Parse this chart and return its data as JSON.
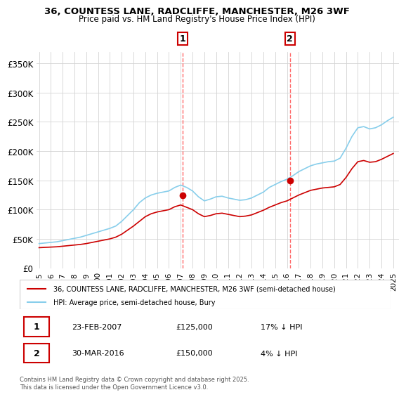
{
  "title_line1": "36, COUNTESS LANE, RADCLIFFE, MANCHESTER, M26 3WF",
  "title_line2": "Price paid vs. HM Land Registry's House Price Index (HPI)",
  "ylabel": "",
  "yticks": [
    0,
    50000,
    100000,
    150000,
    200000,
    250000,
    300000,
    350000
  ],
  "ytick_labels": [
    "£0",
    "£50K",
    "£100K",
    "£150K",
    "£200K",
    "£250K",
    "£300K",
    "£350K"
  ],
  "hpi_color": "#87CEEB",
  "price_color": "#CC0000",
  "vline_color": "#FF6666",
  "annotation_box_color": "#CC0000",
  "legend_label_price": "36, COUNTESS LANE, RADCLIFFE, MANCHESTER, M26 3WF (semi-detached house)",
  "legend_label_hpi": "HPI: Average price, semi-detached house, Bury",
  "transaction1_label": "1",
  "transaction1_date": "23-FEB-2007",
  "transaction1_price": "£125,000",
  "transaction1_hpi": "17% ↓ HPI",
  "transaction2_label": "2",
  "transaction2_date": "30-MAR-2016",
  "transaction2_price": "£150,000",
  "transaction2_hpi": "4% ↓ HPI",
  "footer": "Contains HM Land Registry data © Crown copyright and database right 2025.\nThis data is licensed under the Open Government Licence v3.0.",
  "hpi_data": {
    "years": [
      1995,
      1995.5,
      1996,
      1996.5,
      1997,
      1997.5,
      1998,
      1998.5,
      1999,
      1999.5,
      2000,
      2000.5,
      2001,
      2001.5,
      2002,
      2002.5,
      2003,
      2003.5,
      2004,
      2004.5,
      2005,
      2005.5,
      2006,
      2006.5,
      2007,
      2007.5,
      2008,
      2008.5,
      2009,
      2009.5,
      2010,
      2010.5,
      2011,
      2011.5,
      2012,
      2012.5,
      2013,
      2013.5,
      2014,
      2014.5,
      2015,
      2015.5,
      2016,
      2016.5,
      2017,
      2017.5,
      2018,
      2018.5,
      2019,
      2019.5,
      2020,
      2020.5,
      2021,
      2021.5,
      2022,
      2022.5,
      2023,
      2023.5,
      2024,
      2024.5,
      2025
    ],
    "values": [
      42000,
      43000,
      44000,
      45000,
      47000,
      49000,
      51000,
      53000,
      56000,
      59000,
      62000,
      65000,
      68000,
      72000,
      80000,
      90000,
      100000,
      112000,
      120000,
      125000,
      128000,
      130000,
      132000,
      138000,
      142000,
      138000,
      132000,
      122000,
      115000,
      118000,
      122000,
      123000,
      120000,
      118000,
      116000,
      117000,
      120000,
      125000,
      130000,
      138000,
      143000,
      148000,
      152000,
      158000,
      165000,
      170000,
      175000,
      178000,
      180000,
      182000,
      183000,
      188000,
      205000,
      225000,
      240000,
      242000,
      238000,
      240000,
      245000,
      252000,
      258000
    ]
  },
  "price_data": {
    "years": [
      1995,
      1995.5,
      1996,
      1996.5,
      1997,
      1997.5,
      1998,
      1998.5,
      1999,
      1999.5,
      2000,
      2000.5,
      2001,
      2001.5,
      2002,
      2002.5,
      2003,
      2003.5,
      2004,
      2004.5,
      2005,
      2005.5,
      2006,
      2006.5,
      2007,
      2007.5,
      2008,
      2008.5,
      2009,
      2009.5,
      2010,
      2010.5,
      2011,
      2011.5,
      2012,
      2012.5,
      2013,
      2013.5,
      2014,
      2014.5,
      2015,
      2015.5,
      2016,
      2016.5,
      2017,
      2017.5,
      2018,
      2018.5,
      2019,
      2019.5,
      2020,
      2020.5,
      2021,
      2021.5,
      2022,
      2022.5,
      2023,
      2023.5,
      2024,
      2024.5,
      2025
    ],
    "values": [
      35000,
      35500,
      36000,
      36500,
      37500,
      38500,
      39500,
      40500,
      42000,
      44000,
      46000,
      48000,
      50000,
      53000,
      58000,
      65000,
      72000,
      80000,
      88000,
      93000,
      96000,
      98000,
      100000,
      105000,
      108000,
      104000,
      100000,
      93000,
      88000,
      90000,
      93000,
      94000,
      92000,
      90000,
      88000,
      89000,
      91000,
      95000,
      99000,
      104000,
      108000,
      112000,
      115000,
      120000,
      125000,
      129000,
      133000,
      135000,
      137000,
      138000,
      139000,
      143000,
      155000,
      170000,
      182000,
      184000,
      181000,
      182000,
      186000,
      191000,
      196000
    ]
  },
  "transaction1_x": 2007.15,
  "transaction1_y": 125000,
  "transaction2_x": 2016.25,
  "transaction2_y": 150000,
  "xlim": [
    1994.8,
    2025.5
  ],
  "ylim": [
    0,
    370000
  ],
  "xticks": [
    1995,
    1996,
    1997,
    1998,
    1999,
    2000,
    2001,
    2002,
    2003,
    2004,
    2005,
    2006,
    2007,
    2008,
    2009,
    2010,
    2011,
    2012,
    2013,
    2014,
    2015,
    2016,
    2017,
    2018,
    2019,
    2020,
    2021,
    2022,
    2023,
    2024,
    2025
  ]
}
